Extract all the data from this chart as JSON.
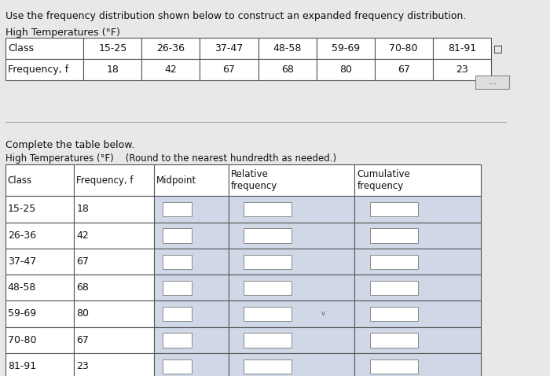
{
  "title_line1": "Use the frequency distribution shown below to construct an expanded frequency distribution.",
  "title_line2": "High Temperatures (°F)",
  "top_table_headers": [
    "Class",
    "15-25",
    "26-36",
    "37-47",
    "48-58",
    "59-69",
    "70-80",
    "81-91"
  ],
  "top_table_row": [
    "Frequency, f",
    "18",
    "42",
    "67",
    "68",
    "80",
    "67",
    "23"
  ],
  "complete_text": "Complete the table below.",
  "subtitle": "High Temperatures (°F)    (Round to the nearest hundredth as needed.)",
  "bottom_col_headers": [
    "Class",
    "Frequency, f",
    "Midpoint",
    "Relative\nfrequency",
    "Cumulative\nfrequency"
  ],
  "bottom_rows": [
    [
      "15-25",
      "18",
      "",
      "",
      ""
    ],
    [
      "26-36",
      "42",
      "",
      "",
      ""
    ],
    [
      "37-47",
      "67",
      "",
      "",
      ""
    ],
    [
      "48-58",
      "68",
      "",
      "",
      ""
    ],
    [
      "59-69",
      "80",
      "",
      "",
      ""
    ],
    [
      "70-80",
      "67",
      "",
      "",
      ""
    ],
    [
      "81-91",
      "23",
      "",
      "",
      ""
    ]
  ],
  "bg_color": "#e8e8e8",
  "table_bg": "#ffffff",
  "cell_fill": "#d0d8e8",
  "border_color": "#555555",
  "text_color": "#111111",
  "font_size": 9,
  "title_font_size": 9
}
